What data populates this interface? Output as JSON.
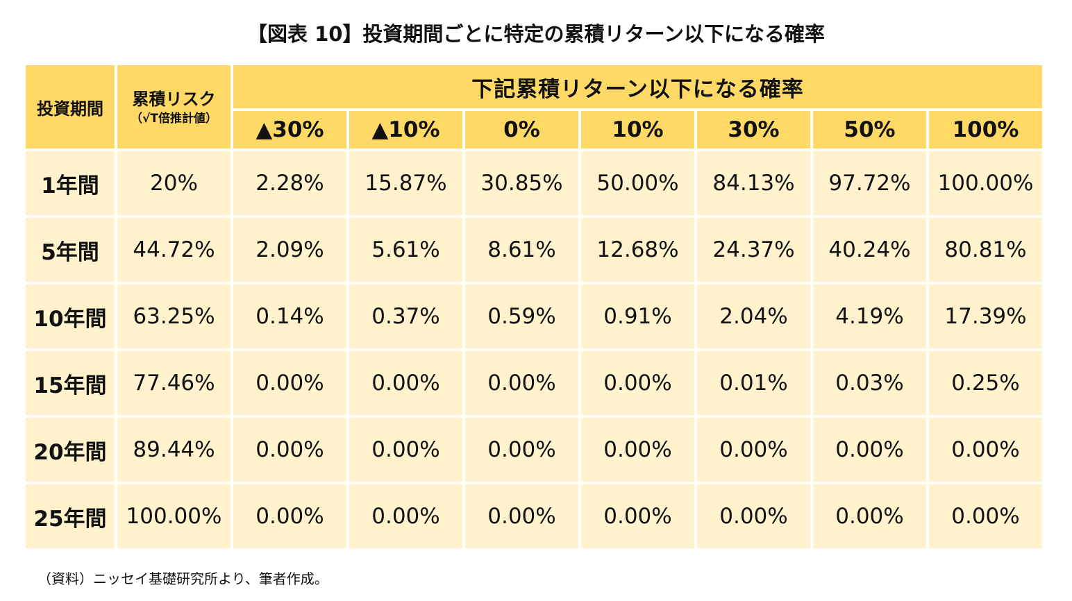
{
  "title": "【図表 10】投資期間ごとに特定の累積リターン以下になる確率",
  "table": {
    "period_header": "投資期間",
    "risk_header": "累積リスク",
    "risk_subheader": "（√T倍推計値）",
    "group_header": "下記累積リターン以下になる確率",
    "return_columns": [
      "▲30%",
      "▲10%",
      "0%",
      "10%",
      "30%",
      "50%",
      "100%"
    ],
    "rows": [
      {
        "period": "1年間",
        "risk": "20%",
        "values": [
          "2.28%",
          "15.87%",
          "30.85%",
          "50.00%",
          "84.13%",
          "97.72%",
          "100.00%"
        ]
      },
      {
        "period": "5年間",
        "risk": "44.72%",
        "values": [
          "2.09%",
          "5.61%",
          "8.61%",
          "12.68%",
          "24.37%",
          "40.24%",
          "80.81%"
        ]
      },
      {
        "period": "10年間",
        "risk": "63.25%",
        "values": [
          "0.14%",
          "0.37%",
          "0.59%",
          "0.91%",
          "2.04%",
          "4.19%",
          "17.39%"
        ]
      },
      {
        "period": "15年間",
        "risk": "77.46%",
        "values": [
          "0.00%",
          "0.00%",
          "0.00%",
          "0.00%",
          "0.01%",
          "0.03%",
          "0.25%"
        ]
      },
      {
        "period": "20年間",
        "risk": "89.44%",
        "values": [
          "0.00%",
          "0.00%",
          "0.00%",
          "0.00%",
          "0.00%",
          "0.00%",
          "0.00%"
        ]
      },
      {
        "period": "25年間",
        "risk": "100.00%",
        "values": [
          "0.00%",
          "0.00%",
          "0.00%",
          "0.00%",
          "0.00%",
          "0.00%",
          "0.00%"
        ]
      }
    ]
  },
  "source": "（資料）ニッセイ基礎研究所より、筆者作成。",
  "colors": {
    "header_bg": "#ffd966",
    "cell_bg": "#fff2cc"
  }
}
